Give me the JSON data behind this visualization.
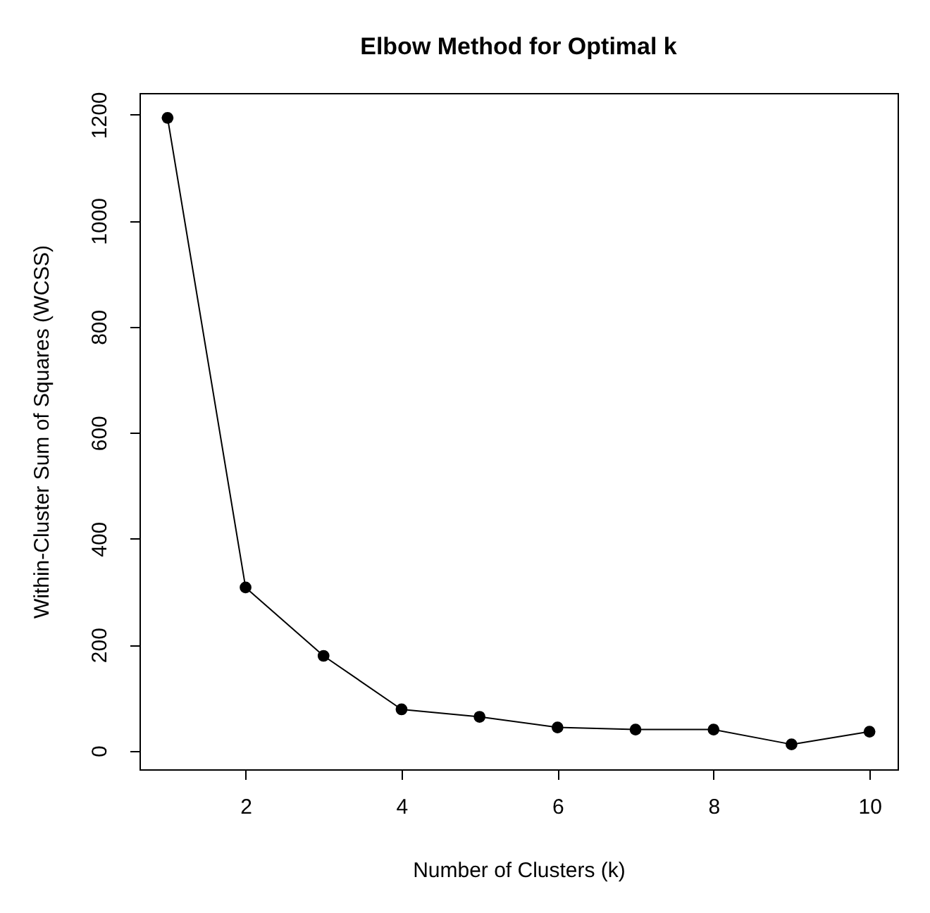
{
  "chart_data": {
    "type": "line",
    "title": "Elbow Method for Optimal k",
    "xlabel": "Number of Clusters (k)",
    "ylabel": "Within-Cluster Sum of Squares (WCSS)",
    "x": [
      1,
      2,
      3,
      4,
      5,
      6,
      7,
      8,
      9,
      10
    ],
    "series": [
      {
        "color": "#000000",
        "values": [
          1194,
          308,
          179,
          78,
          64,
          44,
          40,
          40,
          12,
          36
        ]
      }
    ],
    "xlim": [
      0.64,
      10.36
    ],
    "xticks": [
      2,
      4,
      6,
      8,
      10
    ],
    "ylim": [
      -35,
      1241
    ],
    "yticks": [
      0,
      200,
      400,
      600,
      800,
      1000,
      1200
    ],
    "grid": false,
    "marker": "circle",
    "line_style": "solid"
  }
}
